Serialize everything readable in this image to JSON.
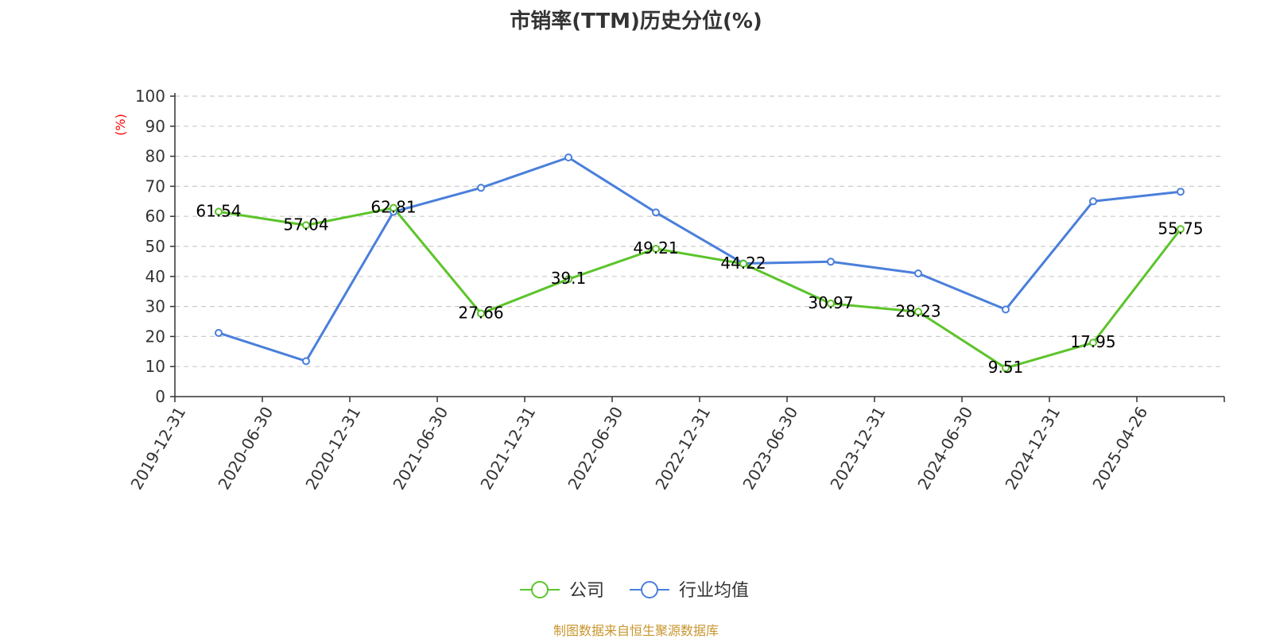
{
  "chart_data": {
    "type": "line",
    "title": "市销率(TTM)历史分位(%)",
    "ylabel": "(%)",
    "xlabel": "",
    "ylim": [
      0,
      100
    ],
    "yticks": [
      0,
      10,
      20,
      30,
      40,
      50,
      60,
      70,
      80,
      90,
      100
    ],
    "categories": [
      "2019-12-31",
      "2020-06-30",
      "2020-12-31",
      "2021-06-30",
      "2021-12-31",
      "2022-06-30",
      "2022-12-31",
      "2023-06-30",
      "2023-12-31",
      "2024-06-30",
      "2024-12-31",
      "2025-04-26"
    ],
    "grid": true,
    "legend_position": "bottom-center",
    "series": [
      {
        "name": "公司",
        "color": "#5cc42b",
        "values": [
          61.54,
          57.04,
          62.81,
          27.66,
          39.1,
          49.21,
          44.22,
          30.97,
          28.23,
          9.51,
          17.95,
          55.75
        ],
        "labels_shown": true
      },
      {
        "name": "行业均值",
        "color": "#4a7fdb",
        "values": [
          21.2,
          11.8,
          61.5,
          69.5,
          79.6,
          61.3,
          44.3,
          44.9,
          41.0,
          29.0,
          65.0,
          68.2
        ],
        "labels_shown": false
      }
    ]
  },
  "source_text": "制图数据来自恒生聚源数据库"
}
